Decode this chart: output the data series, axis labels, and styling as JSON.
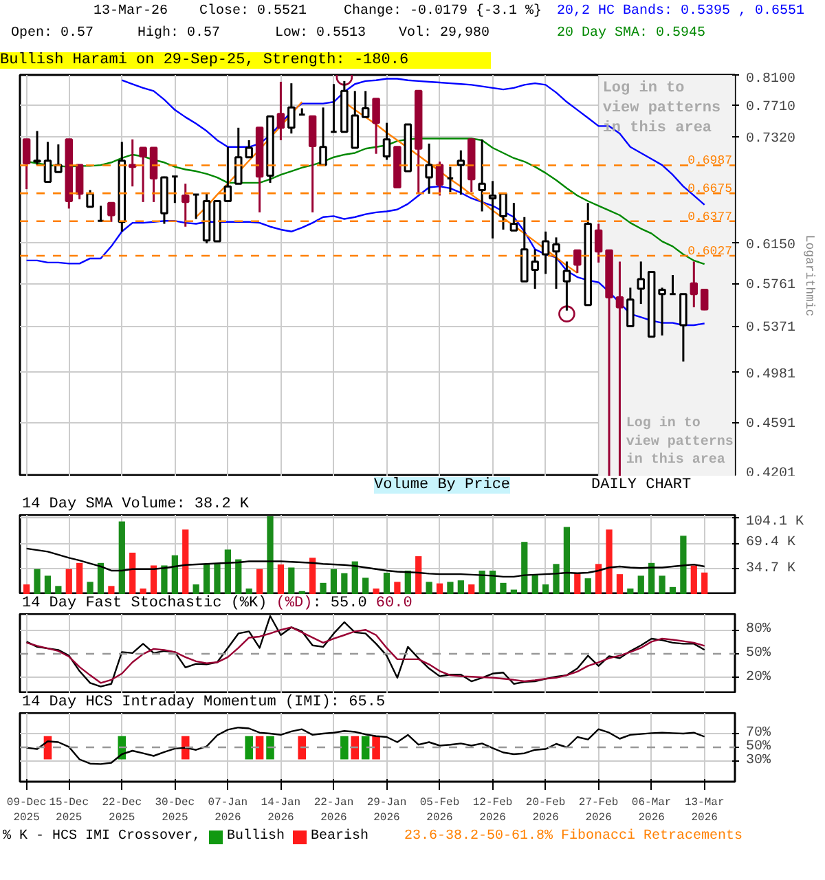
{
  "chart_data": [
    {
      "type": "candlestick",
      "categories": [
        "09-Dec 2025",
        null,
        null,
        null,
        "15-Dec 2025",
        null,
        null,
        null,
        null,
        "22-Dec 2025",
        null,
        null,
        null,
        null,
        "30-Dec 2025",
        null,
        null,
        null,
        null,
        "07-Jan 2026",
        null,
        null,
        null,
        null,
        "14-Jan 2026",
        null,
        null,
        null,
        null,
        "22-Jan 2026",
        null,
        null,
        null,
        null,
        "29-Jan 2026",
        null,
        null,
        null,
        null,
        "05-Feb 2026",
        null,
        null,
        null,
        null,
        "12-Feb 2026",
        null,
        null,
        null,
        null,
        "20-Feb 2026",
        null,
        null,
        null,
        null,
        "27-Feb 2026",
        null,
        null,
        null,
        null,
        "06-Mar 2026",
        null,
        null,
        null,
        null,
        "13-Mar 2026"
      ],
      "ohlc": [
        [
          0.729,
          0.729,
          0.672,
          0.701
        ],
        [
          0.703,
          0.739,
          0.699,
          0.704
        ],
        [
          0.68,
          0.726,
          0.68,
          0.704
        ],
        [
          0.691,
          0.723,
          0.691,
          0.699
        ],
        [
          0.729,
          0.729,
          0.651,
          0.659
        ],
        [
          0.699,
          0.699,
          0.661,
          0.667
        ],
        [
          0.653,
          0.671,
          0.653,
          0.667
        ],
        [
          0.638,
          0.654,
          0.638,
          0.638
        ],
        [
          0.657,
          0.657,
          0.637,
          0.644
        ],
        [
          0.637,
          0.726,
          0.627,
          0.704
        ],
        [
          0.699,
          0.729,
          0.675,
          0.697
        ],
        [
          0.719,
          0.719,
          0.658,
          0.709
        ],
        [
          0.719,
          0.719,
          0.658,
          0.684
        ],
        [
          0.646,
          0.686,
          0.635,
          0.685
        ],
        [
          0.686,
          0.686,
          0.657,
          0.686
        ],
        [
          0.665,
          0.678,
          0.632,
          0.658
        ],
        [
          0.666,
          0.666,
          0.64,
          0.666
        ],
        [
          0.618,
          0.667,
          0.615,
          0.659
        ],
        [
          0.617,
          0.659,
          0.617,
          0.659
        ],
        [
          0.659,
          0.72,
          0.659,
          0.675
        ],
        [
          0.678,
          0.743,
          0.678,
          0.708
        ],
        [
          0.708,
          0.728,
          0.708,
          0.719
        ],
        [
          0.743,
          0.743,
          0.647,
          0.686
        ],
        [
          0.687,
          0.757,
          0.679,
          0.757
        ],
        [
          0.76,
          0.801,
          0.728,
          0.743
        ],
        [
          0.743,
          0.799,
          0.736,
          0.768
        ],
        [
          0.759,
          0.767,
          0.759,
          0.759
        ],
        [
          0.757,
          0.757,
          0.647,
          0.721
        ],
        [
          0.699,
          0.768,
          0.699,
          0.72
        ],
        [
          0.738,
          0.798,
          0.738,
          0.738
        ],
        [
          0.738,
          0.802,
          0.738,
          0.789
        ],
        [
          0.719,
          0.789,
          0.719,
          0.758
        ],
        [
          0.756,
          0.789,
          0.756,
          0.767
        ],
        [
          0.779,
          0.779,
          0.712,
          0.749
        ],
        [
          0.709,
          0.749,
          0.705,
          0.729
        ],
        [
          0.72,
          0.72,
          0.674,
          0.674
        ],
        [
          0.692,
          0.747,
          0.692,
          0.747
        ],
        [
          0.789,
          0.789,
          0.667,
          0.718
        ],
        [
          0.685,
          0.724,
          0.667,
          0.699
        ],
        [
          0.699,
          0.703,
          0.665,
          0.677
        ],
        [
          0.684,
          0.697,
          0.669,
          0.684
        ],
        [
          0.699,
          0.716,
          0.666,
          0.704
        ],
        [
          0.729,
          0.73,
          0.669,
          0.683
        ],
        [
          0.671,
          0.729,
          0.648,
          0.678
        ],
        [
          0.662,
          0.681,
          0.62,
          0.665
        ],
        [
          0.643,
          0.667,
          0.629,
          0.667
        ],
        [
          0.628,
          0.657,
          0.628,
          0.635
        ],
        [
          0.578,
          0.642,
          0.578,
          0.609
        ],
        [
          0.589,
          0.609,
          0.571,
          0.597
        ],
        [
          0.604,
          0.627,
          0.585,
          0.617
        ],
        [
          0.607,
          0.621,
          0.571,
          0.614
        ],
        [
          0.578,
          0.597,
          0.551,
          0.588
        ],
        [
          0.608,
          0.608,
          0.586,
          0.594
        ],
        [
          0.556,
          0.657,
          0.556,
          0.635
        ],
        [
          0.628,
          0.635,
          0.596,
          0.607
        ],
        [
          0.608,
          0.608,
          0.4201,
          0.563
        ],
        [
          0.563,
          0.597,
          0.4201,
          0.554
        ],
        [
          0.537,
          0.572,
          0.537,
          0.561
        ],
        [
          0.571,
          0.597,
          0.557,
          0.58
        ],
        [
          0.528,
          0.587,
          0.528,
          0.587
        ],
        [
          0.566,
          0.572,
          0.529,
          0.57
        ],
        [
          0.566,
          0.584,
          0.566,
          0.566
        ],
        [
          0.538,
          0.566,
          0.507,
          0.566
        ],
        [
          0.576,
          0.597,
          0.554,
          0.566
        ],
        [
          0.57,
          0.57,
          0.5513,
          0.5521
        ]
      ],
      "colors": [
        "#990033",
        "#ffffff",
        "#ffffff",
        "#ffffff",
        "#990033",
        "#990033",
        "#ffffff",
        "#000000",
        "#990033",
        "#ffffff",
        "#990033",
        "#990033",
        "#990033",
        "#ffffff",
        "#000000",
        "#990033",
        "#000000",
        "#ffffff",
        "#ffffff",
        "#ffffff",
        "#ffffff",
        "#ffffff",
        "#990033",
        "#ffffff",
        "#990033",
        "#ffffff",
        "#000000",
        "#990033",
        "#ffffff",
        "#000000",
        "#ffffff",
        "#ffffff",
        "#ffffff",
        "#990033",
        "#ffffff",
        "#990033",
        "#ffffff",
        "#990033",
        "#ffffff",
        "#990033",
        "#000000",
        "#ffffff",
        "#990033",
        "#ffffff",
        "#ffffff",
        "#ffffff",
        "#ffffff",
        "#ffffff",
        "#ffffff",
        "#ffffff",
        "#ffffff",
        "#ffffff",
        "#990033",
        "#ffffff",
        "#990033",
        "#990033",
        "#990033",
        "#ffffff",
        "#ffffff",
        "#ffffff",
        "#ffffff",
        "#000000",
        "#ffffff",
        "#990033",
        "#990033"
      ],
      "series": [
        {
          "type": "line",
          "name": "20,2 HC Bands: 0.5395 , 0.6551",
          "color": "#0000ff",
          "values": [
            null,
            null,
            null,
            null,
            null,
            null,
            null,
            null,
            null,
            0.803,
            0.798,
            0.793,
            0.789,
            0.778,
            0.765,
            0.756,
            0.748,
            0.739,
            0.728,
            0.72,
            0.72,
            0.72,
            0.724,
            0.734,
            0.748,
            0.763,
            0.773,
            0.773,
            0.773,
            0.775,
            0.788,
            0.798,
            0.802,
            0.803,
            0.805,
            0.805,
            0.803,
            0.802,
            0.801,
            0.8,
            0.799,
            0.798,
            0.797,
            0.795,
            0.793,
            0.791,
            0.793,
            0.797,
            0.799,
            0.797,
            0.787,
            0.775,
            0.765,
            0.755,
            0.745,
            0.745,
            0.736,
            0.72,
            0.713,
            0.706,
            0.699,
            0.688,
            0.675,
            0.665,
            0.6551
          ]
        },
        {
          "type": "line",
          "color": "#0000ff",
          "values": [
            0.598,
            0.598,
            0.596,
            0.596,
            0.595,
            0.595,
            0.6,
            0.6,
            0.612,
            0.627,
            0.636,
            0.636,
            0.637,
            0.638,
            0.638,
            0.636,
            0.635,
            0.637,
            0.637,
            0.637,
            0.637,
            0.637,
            0.636,
            0.632,
            0.629,
            0.627,
            0.631,
            0.636,
            0.642,
            0.643,
            0.64,
            0.642,
            0.645,
            0.647,
            0.648,
            0.65,
            0.656,
            0.665,
            0.674,
            0.675,
            0.673,
            0.668,
            0.662,
            0.658,
            0.654,
            0.648,
            0.642,
            0.627,
            0.609,
            0.604,
            0.601,
            0.588,
            0.582,
            0.579,
            0.577,
            0.568,
            0.558,
            0.548,
            0.545,
            0.542,
            0.54,
            0.54,
            0.538,
            0.538,
            0.5395
          ]
        },
        {
          "type": "line",
          "name": "20 Day SMA: 0.5945",
          "color": "#008800",
          "values": [
            0.703,
            0.701,
            0.699,
            0.698,
            0.697,
            0.698,
            0.698,
            0.699,
            0.702,
            0.707,
            0.711,
            0.709,
            0.705,
            0.702,
            0.697,
            0.694,
            0.692,
            0.689,
            0.685,
            0.679,
            0.679,
            0.679,
            0.679,
            0.683,
            0.688,
            0.692,
            0.696,
            0.699,
            0.703,
            0.708,
            0.711,
            0.713,
            0.718,
            0.72,
            0.722,
            0.727,
            0.729,
            0.73,
            0.73,
            0.73,
            0.73,
            0.73,
            0.73,
            0.728,
            0.719,
            0.713,
            0.707,
            0.703,
            0.697,
            0.69,
            0.682,
            0.673,
            0.665,
            0.659,
            0.654,
            0.649,
            0.644,
            0.636,
            0.63,
            0.625,
            0.617,
            0.612,
            0.604,
            0.598,
            0.5945
          ]
        },
        {
          "type": "line",
          "color": "#ff8000",
          "values": [
            null,
            null,
            null,
            null,
            null,
            null,
            null,
            null,
            null,
            null,
            null,
            null,
            null,
            null,
            null,
            null,
            0.642,
            0.653,
            0.666,
            0.678,
            0.691,
            0.704,
            0.717,
            0.731,
            0.745,
            0.76,
            0.775,
            null,
            null,
            null,
            null,
            null,
            null,
            null,
            null,
            null,
            null,
            null,
            null,
            null,
            null,
            null,
            null,
            null,
            null,
            null,
            null,
            null,
            null,
            null,
            null,
            null,
            null,
            null,
            null,
            null,
            null,
            null,
            null,
            null,
            null,
            null,
            null,
            null,
            null
          ]
        },
        {
          "type": "line",
          "color": "#ff8000",
          "values": [
            null,
            null,
            null,
            null,
            null,
            null,
            null,
            null,
            null,
            null,
            null,
            null,
            null,
            null,
            null,
            null,
            null,
            null,
            null,
            null,
            null,
            null,
            null,
            null,
            null,
            null,
            null,
            null,
            null,
            null,
            0.775,
            0.765,
            0.756,
            0.747,
            0.737,
            0.728,
            0.719,
            0.71,
            0.701,
            0.692,
            0.683,
            0.675,
            0.666,
            0.658,
            0.649,
            0.641,
            0.633,
            0.625,
            0.617,
            0.609,
            0.601,
            0.593,
            0.586,
            null,
            null,
            null,
            null,
            null,
            null,
            null,
            null,
            null,
            null,
            null,
            null
          ]
        },
        {
          "type": "scatter",
          "marker": "circle",
          "color": "#990033",
          "values": [
            null,
            null,
            null,
            null,
            null,
            null,
            null,
            null,
            null,
            null,
            null,
            null,
            null,
            null,
            null,
            null,
            null,
            null,
            null,
            null,
            null,
            null,
            null,
            null,
            null,
            null,
            null,
            null,
            null,
            null,
            0.807,
            null,
            null,
            null,
            null,
            null,
            null,
            null,
            null,
            null,
            null,
            null,
            null,
            null,
            null,
            null,
            null,
            null,
            null,
            null,
            null,
            0.548,
            null,
            null,
            null,
            null,
            null,
            null,
            null,
            null,
            null,
            null,
            null,
            null,
            null
          ]
        }
      ],
      "ylim": [
        0.4201,
        0.81
      ],
      "log": true,
      "yticks": [
        {
          "value": 0.81,
          "label": "0.8100"
        },
        {
          "value": 0.771,
          "label": "0.7710"
        },
        {
          "value": 0.732,
          "label": "0.7320"
        },
        {
          "value": 0.615,
          "label": "0.6150"
        },
        0.5761,
        0.5371,
        0.4981,
        0.4591,
        0.4201
      ],
      "ylabel": "Logarithmic",
      "grid": true,
      "tick_labels": "y",
      "ref_lines": [
        {
          "axis": "y",
          "value": 0.6987,
          "label": "0.6987",
          "color": "#ff8000",
          "line_style": "dashed"
        },
        {
          "axis": "y",
          "value": 0.6675,
          "label": "0.6675",
          "color": "#ff8000",
          "line_style": "dashed"
        },
        {
          "axis": "y",
          "value": 0.6377,
          "label": "0.6377",
          "color": "#ff8000",
          "line_style": "dashed"
        },
        {
          "axis": "y",
          "value": 0.6027,
          "label": "0.6027",
          "color": "#ff8000",
          "line_style": "dashed"
        }
      ],
      "bands": [
        {
          "axis": "x",
          "from": "27-Feb 2026",
          "to": "13-Mar 2026",
          "label": "Log in to view patterns in this area",
          "color": "#f2f2f2"
        }
      ],
      "annotations": [
        "13-Mar-26",
        "Close: 0.5521",
        "Change: -0.0179 {-3.1 %}",
        "Open: 0.57",
        "High: 0.57",
        "Low: 0.5513",
        "Vol: 29,980",
        "Bullish Harami on 29-Sep-25, Strength: -180.6",
        "Log in to view patterns in this area",
        "DAILY CHART",
        "Volume By Price"
      ]
    },
    {
      "type": "bar",
      "title": "14 Day SMA Volume: 38.2 K",
      "categories": [
        "09-Dec 2025",
        null,
        null,
        null,
        "15-Dec 2025",
        null,
        null,
        null,
        null,
        "22-Dec 2025",
        null,
        null,
        null,
        null,
        "30-Dec 2025",
        null,
        null,
        null,
        null,
        "07-Jan 2026",
        null,
        null,
        null,
        null,
        "14-Jan 2026",
        null,
        null,
        null,
        null,
        "22-Jan 2026",
        null,
        null,
        null,
        null,
        "29-Jan 2026",
        null,
        null,
        null,
        null,
        "05-Feb 2026",
        null,
        null,
        null,
        null,
        "12-Feb 2026",
        null,
        null,
        null,
        null,
        "20-Feb 2026",
        null,
        null,
        null,
        null,
        "27-Feb 2026",
        null,
        null,
        null,
        null,
        "06-Mar 2026",
        null,
        null,
        null,
        null,
        "13-Mar 2026"
      ],
      "values": [
        13.9,
        34.7,
        25.7,
        11.8,
        34.7,
        43.0,
        17.4,
        43.0,
        11.8,
        99.2,
        56.9,
        8.3,
        39.6,
        39.6,
        53.4,
        88.1,
        13.9,
        41.6,
        41.6,
        61.1,
        47.9,
        8.3,
        34.7,
        106.2,
        40.9,
        36.8,
        4.9,
        50.0,
        16.0,
        34.7,
        29.1,
        45.1,
        22.9,
        8.3,
        29.8,
        17.4,
        32.6,
        52.1,
        17.4,
        15.3,
        17.4,
        19.4,
        13.9,
        32.6,
        32.6,
        16.0,
        6.9,
        71.5,
        27.8,
        13.9,
        41.6,
        91.6,
        29.1,
        22.2,
        41.6,
        88.1,
        27.8,
        8.3,
        25.7,
        43.0,
        25.7,
        10.4,
        79.8,
        39.6,
        30.0
      ],
      "colors": [
        "#ff2020",
        "#1a8c1a",
        "#1a8c1a",
        "#1a8c1a",
        "#ff2020",
        "#ff2020",
        "#1a8c1a",
        "#1a8c1a",
        "#ff2020",
        "#1a8c1a",
        "#ff2020",
        "#ff2020",
        "#ff2020",
        "#1a8c1a",
        "#1a8c1a",
        "#ff2020",
        "#1a8c1a",
        "#1a8c1a",
        "#1a8c1a",
        "#1a8c1a",
        "#1a8c1a",
        "#1a8c1a",
        "#ff2020",
        "#1a8c1a",
        "#ff2020",
        "#1a8c1a",
        "#1a8c1a",
        "#ff2020",
        "#1a8c1a",
        "#1a8c1a",
        "#1a8c1a",
        "#1a8c1a",
        "#1a8c1a",
        "#ff2020",
        "#1a8c1a",
        "#ff2020",
        "#1a8c1a",
        "#ff2020",
        "#1a8c1a",
        "#ff2020",
        "#1a8c1a",
        "#1a8c1a",
        "#ff2020",
        "#1a8c1a",
        "#1a8c1a",
        "#1a8c1a",
        "#1a8c1a",
        "#1a8c1a",
        "#1a8c1a",
        "#1a8c1a",
        "#1a8c1a",
        "#1a8c1a",
        "#ff2020",
        "#1a8c1a",
        "#ff2020",
        "#ff2020",
        "#ff2020",
        "#1a8c1a",
        "#1a8c1a",
        "#1a8c1a",
        "#1a8c1a",
        "#1a8c1a",
        "#1a8c1a",
        "#ff2020",
        "#ff2020"
      ],
      "series": [
        {
          "type": "line",
          "color": "#000000",
          "values": [
            62.5,
            60.4,
            58.3,
            54.1,
            50.0,
            46.5,
            42.3,
            38.2,
            32.6,
            32.6,
            34.7,
            34.7,
            34.7,
            36.1,
            38.2,
            40.3,
            40.9,
            41.6,
            42.3,
            43.0,
            43.7,
            45.1,
            45.1,
            45.1,
            45.1,
            44.4,
            43.7,
            43.0,
            41.6,
            40.9,
            40.3,
            38.9,
            36.8,
            34.7,
            32.6,
            31.2,
            30.5,
            29.8,
            28.5,
            27.8,
            27.8,
            27.8,
            27.1,
            26.4,
            25.7,
            24.3,
            24.3,
            26.4,
            27.1,
            27.8,
            28.5,
            29.8,
            29.1,
            29.8,
            32.6,
            36.8,
            38.2,
            36.8,
            36.1,
            36.8,
            36.8,
            38.2,
            39.6,
            40.9,
            38.2
          ]
        }
      ],
      "ylim": [
        0,
        108
      ],
      "yticks": [
        {
          "value": 34.7,
          "label": "34.7 K"
        },
        {
          "value": 69.4,
          "label": "69.4 K"
        },
        {
          "value": 104.1,
          "label": "104.1 K"
        }
      ],
      "grid": true,
      "tick_labels": "y"
    },
    {
      "type": "line",
      "title": "14 Day Fast Stochastic (%K)",
      "categories": [
        "09-Dec 2025",
        null,
        null,
        null,
        "15-Dec 2025",
        null,
        null,
        null,
        null,
        "22-Dec 2025",
        null,
        null,
        null,
        null,
        "30-Dec 2025",
        null,
        null,
        null,
        null,
        "07-Jan 2026",
        null,
        null,
        null,
        null,
        "14-Jan 2026",
        null,
        null,
        null,
        null,
        "22-Jan 2026",
        null,
        null,
        null,
        null,
        "29-Jan 2026",
        null,
        null,
        null,
        null,
        "05-Feb 2026",
        null,
        null,
        null,
        null,
        "12-Feb 2026",
        null,
        null,
        null,
        null,
        "20-Feb 2026",
        null,
        null,
        null,
        null,
        "27-Feb 2026",
        null,
        null,
        null,
        null,
        "06-Mar 2026",
        null,
        null,
        null,
        null,
        "13-Mar 2026"
      ],
      "series": [
        {
          "color": "#000000",
          "values": [
            65.2,
            58.7,
            56.8,
            54.8,
            47.7,
            28.4,
            13.5,
            9.0,
            12.3,
            52.3,
            51.0,
            62.6,
            51.0,
            53.5,
            52.3,
            32.9,
            37.4,
            36.8,
            39.4,
            57.4,
            75.5,
            78.1,
            57.4,
            97.4,
            73.5,
            83.2,
            78.1,
            60.6,
            58.7,
            75.5,
            89.7,
            76.8,
            75.5,
            62.6,
            47.7,
            20.0,
            58.7,
            44.5,
            31.6,
            21.9,
            23.9,
            23.9,
            15.5,
            20.0,
            25.2,
            26.5,
            12.3,
            14.8,
            15.5,
            18.7,
            21.3,
            23.2,
            31.6,
            47.7,
            34.8,
            47.1,
            44.5,
            53.5,
            60.6,
            69.0,
            67.1,
            63.9,
            62.6,
            62.6,
            55.0
          ]
        },
        {
          "name": "(%D)",
          "color": "#990033",
          "values": [
            63.9,
            60.0,
            56.8,
            53.5,
            46.5,
            33.5,
            23.2,
            13.5,
            17.4,
            25.2,
            39.4,
            49.7,
            56.1,
            54.8,
            52.3,
            45.8,
            40.6,
            38.1,
            39.4,
            45.8,
            57.4,
            70.3,
            71.6,
            75.5,
            80.0,
            83.2,
            76.8,
            70.3,
            63.9,
            69.0,
            73.5,
            78.1,
            80.0,
            73.5,
            57.4,
            43.2,
            43.2,
            43.2,
            36.8,
            28.4,
            23.2,
            21.9,
            21.3,
            20.6,
            20.0,
            18.7,
            17.4,
            15.5,
            16.8,
            18.7,
            20.0,
            23.2,
            27.7,
            34.8,
            39.4,
            44.5,
            47.7,
            52.3,
            57.4,
            65.2,
            69.0,
            67.7,
            65.8,
            63.9,
            60.0
          ]
        }
      ],
      "annotations": [
        ": 55.0",
        "60.0"
      ],
      "ylim": [
        0,
        100
      ],
      "yticks": [
        {
          "value": 20,
          "label": "20%"
        },
        {
          "value": 50,
          "label": "50%"
        },
        {
          "value": 80,
          "label": "80%"
        }
      ],
      "grid": true,
      "tick_labels": "y",
      "ref_lines": [
        {
          "axis": "y",
          "value": 50,
          "label": null,
          "color": "#999999",
          "line_style": "dashed"
        }
      ]
    },
    {
      "type": "line",
      "title": "14 Day HCS Intraday Momentum (IMI): 65.5",
      "categories": [
        "09-Dec 2025",
        null,
        null,
        null,
        "15-Dec 2025",
        null,
        null,
        null,
        null,
        "22-Dec 2025",
        null,
        null,
        null,
        null,
        "30-Dec 2025",
        null,
        null,
        null,
        null,
        "07-Jan 2026",
        null,
        null,
        null,
        null,
        "14-Jan 2026",
        null,
        null,
        null,
        null,
        "22-Jan 2026",
        null,
        null,
        null,
        null,
        "29-Jan 2026",
        null,
        null,
        null,
        null,
        "05-Feb 2026",
        null,
        null,
        null,
        null,
        "12-Feb 2026",
        null,
        null,
        null,
        null,
        "20-Feb 2026",
        null,
        null,
        null,
        null,
        "27-Feb 2026",
        null,
        null,
        null,
        null,
        "06-Mar 2026",
        null,
        null,
        null,
        null,
        "13-Mar 2026"
      ],
      "series": [
        {
          "color": "#000000",
          "values": [
            49.4,
            47.5,
            58.8,
            57.5,
            50.6,
            32.5,
            26.3,
            25.6,
            27.5,
            40.0,
            45.0,
            41.3,
            37.5,
            43.1,
            48.1,
            49.4,
            46.3,
            51.3,
            67.5,
            75.6,
            78.8,
            77.5,
            71.3,
            70.0,
            68.1,
            73.1,
            76.3,
            68.1,
            70.0,
            71.3,
            73.8,
            72.5,
            68.8,
            66.3,
            65.0,
            57.5,
            68.1,
            53.8,
            57.5,
            52.5,
            53.8,
            55.6,
            52.5,
            55.6,
            48.8,
            42.5,
            40.0,
            41.3,
            46.3,
            47.5,
            55.0,
            50.0,
            65.0,
            61.3,
            76.3,
            71.3,
            62.5,
            68.1,
            69.4,
            70.6,
            71.3,
            70.6,
            70.0,
            71.3,
            65.5
          ]
        },
        {
          "type": "bar",
          "name": "Bullish",
          "color": "#119911",
          "values": [
            null,
            null,
            null,
            null,
            null,
            null,
            null,
            null,
            null,
            33.8,
            null,
            null,
            null,
            null,
            null,
            null,
            null,
            null,
            null,
            null,
            null,
            33.8,
            null,
            33.8,
            null,
            null,
            null,
            null,
            null,
            null,
            33.8,
            null,
            33.8,
            null,
            null,
            null,
            null,
            null,
            null,
            null,
            null,
            null,
            null,
            null,
            null,
            null,
            null,
            null,
            null,
            null,
            null,
            null,
            null,
            null,
            null,
            null,
            null,
            null,
            null,
            null,
            null,
            null,
            null,
            null,
            null
          ],
          "base": [
            null,
            null,
            null,
            null,
            null,
            null,
            null,
            null,
            null,
            32.5,
            null,
            null,
            null,
            null,
            null,
            null,
            null,
            null,
            null,
            null,
            null,
            32.5,
            null,
            32.5,
            null,
            null,
            null,
            null,
            null,
            null,
            32.5,
            null,
            32.5,
            null,
            null,
            null,
            null,
            null,
            null,
            null,
            null,
            null,
            null,
            null,
            null,
            null,
            null,
            null,
            null,
            null,
            null,
            null,
            null,
            null,
            null,
            null,
            null,
            null,
            null,
            null,
            null,
            null,
            null,
            null,
            null
          ]
        },
        {
          "type": "bar",
          "name": "Bearish",
          "color": "#ff1a1a",
          "values": [
            null,
            null,
            33.8,
            null,
            null,
            null,
            null,
            null,
            null,
            null,
            null,
            null,
            null,
            null,
            null,
            33.8,
            null,
            null,
            null,
            null,
            null,
            null,
            33.8,
            null,
            null,
            null,
            33.8,
            null,
            null,
            null,
            null,
            33.8,
            null,
            33.8,
            null,
            null,
            null,
            null,
            null,
            null,
            null,
            null,
            null,
            null,
            null,
            null,
            null,
            null,
            null,
            null,
            null,
            null,
            null,
            null,
            null,
            null,
            null,
            null,
            null,
            null,
            null,
            null,
            null,
            null,
            null
          ],
          "base": [
            null,
            null,
            32.5,
            null,
            null,
            null,
            null,
            null,
            null,
            null,
            null,
            null,
            null,
            null,
            null,
            32.5,
            null,
            null,
            null,
            null,
            null,
            null,
            32.5,
            null,
            null,
            null,
            32.5,
            null,
            null,
            null,
            null,
            32.5,
            null,
            32.5,
            null,
            null,
            null,
            null,
            null,
            null,
            null,
            null,
            null,
            null,
            null,
            null,
            null,
            null,
            null,
            null,
            null,
            null,
            null,
            null,
            null,
            null,
            null,
            null,
            null,
            null,
            null,
            null,
            null,
            null,
            null
          ]
        }
      ],
      "legend": "bottom",
      "legend_title": "% K - HCS IMI Crossover,",
      "annotations": [
        "23.6-38.2-50-61.8% Fibonacci Retracements"
      ],
      "ylim": [
        0,
        100
      ],
      "yticks": [
        {
          "value": 30,
          "label": "30%"
        },
        {
          "value": 50,
          "label": "50%"
        },
        {
          "value": 70,
          "label": "70%"
        }
      ],
      "grid": true,
      "ref_lines": [
        {
          "axis": "y",
          "value": 50,
          "label": null,
          "color": "#999999",
          "line_style": "dashed"
        }
      ]
    }
  ]
}
